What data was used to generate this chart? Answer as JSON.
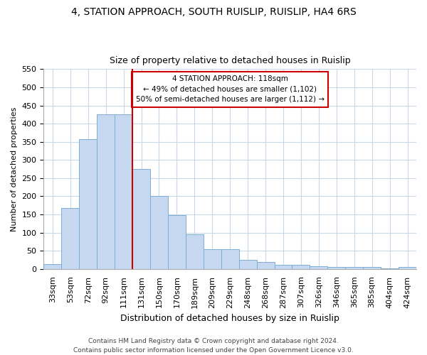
{
  "title": "4, STATION APPROACH, SOUTH RUISLIP, RUISLIP, HA4 6RS",
  "subtitle": "Size of property relative to detached houses in Ruislip",
  "xlabel": "Distribution of detached houses by size in Ruislip",
  "ylabel": "Number of detached properties",
  "categories": [
    "33sqm",
    "53sqm",
    "72sqm",
    "92sqm",
    "111sqm",
    "131sqm",
    "150sqm",
    "170sqm",
    "189sqm",
    "209sqm",
    "229sqm",
    "248sqm",
    "268sqm",
    "287sqm",
    "307sqm",
    "326sqm",
    "346sqm",
    "365sqm",
    "385sqm",
    "404sqm",
    "424sqm"
  ],
  "values": [
    13,
    168,
    357,
    425,
    425,
    275,
    200,
    148,
    96,
    55,
    55,
    26,
    20,
    12,
    12,
    8,
    5,
    5,
    5,
    2,
    5
  ],
  "bar_color": "#c5d8f0",
  "bar_edge_color": "#7bafd4",
  "annotation_text": "4 STATION APPROACH: 118sqm\n← 49% of detached houses are smaller (1,102)\n50% of semi-detached houses are larger (1,112) →",
  "annotation_box_color": "#ffffff",
  "annotation_box_edge_color": "#cc0000",
  "vline_x_index": 4,
  "vline_color": "#cc0000",
  "ylim": [
    0,
    550
  ],
  "yticks": [
    0,
    50,
    100,
    150,
    200,
    250,
    300,
    350,
    400,
    450,
    500,
    550
  ],
  "footer_line1": "Contains HM Land Registry data © Crown copyright and database right 2024.",
  "footer_line2": "Contains public sector information licensed under the Open Government Licence v3.0.",
  "background_color": "#ffffff",
  "plot_bg_color": "#ffffff",
  "grid_color": "#c8d8e8",
  "title_fontsize": 10,
  "subtitle_fontsize": 9,
  "xlabel_fontsize": 9,
  "ylabel_fontsize": 8,
  "tick_fontsize": 8,
  "annotation_fontsize": 7.5,
  "footer_fontsize": 6.5
}
